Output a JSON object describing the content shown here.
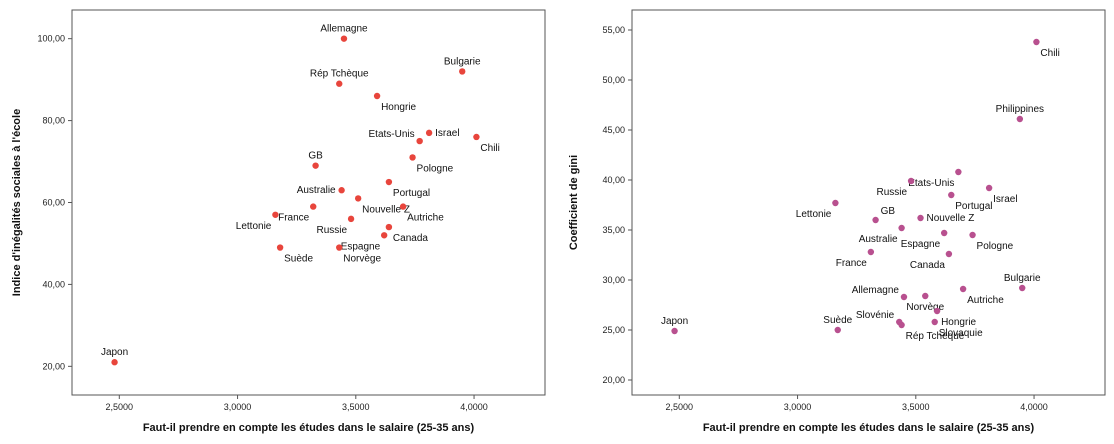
{
  "chart_data": [
    {
      "type": "scatter",
      "title": "",
      "xlabel": "Faut-il prendre en compte les études dans le salaire (25-35 ans)",
      "ylabel": "Indice d'inégalités sociales à l'école",
      "xlim": [
        2.3,
        4.3
      ],
      "ylim": [
        13,
        107
      ],
      "x_ticks": [
        2.5,
        3.0,
        3.5,
        4.0
      ],
      "x_tick_labels": [
        "2,5000",
        "3,0000",
        "3,5000",
        "4,0000"
      ],
      "y_ticks": [
        20,
        40,
        60,
        80,
        100
      ],
      "y_tick_labels": [
        "20,00",
        "40,00",
        "60,00",
        "80,00",
        "100,00"
      ],
      "grid": false,
      "marker_color": "#e8453c",
      "points": [
        {
          "label": "Allemagne",
          "x": 3.45,
          "y": 100,
          "pos": "top"
        },
        {
          "label": "Bulgarie",
          "x": 3.95,
          "y": 92,
          "pos": "top"
        },
        {
          "label": "Rép Tchèque",
          "x": 3.43,
          "y": 89,
          "pos": "top"
        },
        {
          "label": "Hongrie",
          "x": 3.59,
          "y": 86,
          "pos": "belowright"
        },
        {
          "label": "Etats-Unis",
          "x": 3.77,
          "y": 75,
          "pos": "topleft"
        },
        {
          "label": "Israel",
          "x": 3.81,
          "y": 77,
          "pos": "right"
        },
        {
          "label": "Chili",
          "x": 4.01,
          "y": 76,
          "pos": "belowright"
        },
        {
          "label": "Pologne",
          "x": 3.74,
          "y": 71,
          "pos": "belowright"
        },
        {
          "label": "GB",
          "x": 3.33,
          "y": 69,
          "pos": "top"
        },
        {
          "label": "Portugal",
          "x": 3.64,
          "y": 65,
          "pos": "belowright"
        },
        {
          "label": "Australie",
          "x": 3.44,
          "y": 63,
          "pos": "left"
        },
        {
          "label": "Nouvelle Z",
          "x": 3.51,
          "y": 61,
          "pos": "belowright"
        },
        {
          "label": "Autriche",
          "x": 3.7,
          "y": 59,
          "pos": "belowright"
        },
        {
          "label": "France",
          "x": 3.32,
          "y": 59,
          "pos": "belowleft"
        },
        {
          "label": "Lettonie",
          "x": 3.16,
          "y": 57,
          "pos": "belowleft"
        },
        {
          "label": "Russie",
          "x": 3.48,
          "y": 56,
          "pos": "belowleft"
        },
        {
          "label": "Canada",
          "x": 3.64,
          "y": 54,
          "pos": "belowright"
        },
        {
          "label": "Espagne",
          "x": 3.62,
          "y": 52,
          "pos": "belowleft"
        },
        {
          "label": "Norvège",
          "x": 3.43,
          "y": 49,
          "pos": "belowright"
        },
        {
          "label": "Suède",
          "x": 3.18,
          "y": 49,
          "pos": "belowright"
        },
        {
          "label": "Japon",
          "x": 2.48,
          "y": 21,
          "pos": "top"
        }
      ]
    },
    {
      "type": "scatter",
      "title": "",
      "xlabel": "Faut-il prendre en compte les études dans le salaire (25-35 ans)",
      "ylabel": "Coefficient de gini",
      "xlim": [
        2.3,
        4.3
      ],
      "ylim": [
        18.5,
        57
      ],
      "x_ticks": [
        2.5,
        3.0,
        3.5,
        4.0
      ],
      "x_tick_labels": [
        "2,5000",
        "3,0000",
        "3,5000",
        "4,0000"
      ],
      "y_ticks": [
        20,
        25,
        30,
        35,
        40,
        45,
        50,
        55
      ],
      "y_tick_labels": [
        "20,00",
        "25,00",
        "30,00",
        "35,00",
        "40,00",
        "45,00",
        "50,00",
        "55,00"
      ],
      "grid": false,
      "marker_color": "#b8508f",
      "points": [
        {
          "label": "Chili",
          "x": 4.01,
          "y": 53.8,
          "pos": "belowright"
        },
        {
          "label": "Philippines",
          "x": 3.94,
          "y": 46.1,
          "pos": "top"
        },
        {
          "label": "Etats-Unis",
          "x": 3.68,
          "y": 40.8,
          "pos": "belowleft"
        },
        {
          "label": "Russie",
          "x": 3.48,
          "y": 39.9,
          "pos": "belowleft"
        },
        {
          "label": "Israel",
          "x": 3.81,
          "y": 39.2,
          "pos": "belowright"
        },
        {
          "label": "Portugal",
          "x": 3.65,
          "y": 38.5,
          "pos": "belowright"
        },
        {
          "label": "Lettonie",
          "x": 3.16,
          "y": 37.7,
          "pos": "belowleft"
        },
        {
          "label": "GB",
          "x": 3.33,
          "y": 36.0,
          "pos": "topright"
        },
        {
          "label": "Nouvelle Z",
          "x": 3.52,
          "y": 36.2,
          "pos": "right"
        },
        {
          "label": "Australie",
          "x": 3.44,
          "y": 35.2,
          "pos": "belowleft"
        },
        {
          "label": "Espagne",
          "x": 3.62,
          "y": 34.7,
          "pos": "belowleft"
        },
        {
          "label": "Pologne",
          "x": 3.74,
          "y": 34.5,
          "pos": "belowright"
        },
        {
          "label": "France",
          "x": 3.31,
          "y": 32.8,
          "pos": "belowleft"
        },
        {
          "label": "Canada",
          "x": 3.64,
          "y": 32.6,
          "pos": "belowleft"
        },
        {
          "label": "Bulgarie",
          "x": 3.95,
          "y": 29.2,
          "pos": "top"
        },
        {
          "label": "Autriche",
          "x": 3.7,
          "y": 29.1,
          "pos": "belowright"
        },
        {
          "label": "Allemagne",
          "x": 3.45,
          "y": 28.3,
          "pos": "topleft"
        },
        {
          "label": "Norvège",
          "x": 3.54,
          "y": 28.4,
          "pos": "below"
        },
        {
          "label": "Slovénie",
          "x": 3.43,
          "y": 25.8,
          "pos": "topleft"
        },
        {
          "label": "Hongrie",
          "x": 3.59,
          "y": 26.9,
          "pos": "belowright"
        },
        {
          "label": "Slovaquie",
          "x": 3.58,
          "y": 25.8,
          "pos": "belowright"
        },
        {
          "label": "Rép Tchèque",
          "x": 3.44,
          "y": 25.5,
          "pos": "belowright"
        },
        {
          "label": "Suède",
          "x": 3.17,
          "y": 25.0,
          "pos": "top"
        },
        {
          "label": "Japon",
          "x": 2.48,
          "y": 24.9,
          "pos": "top"
        }
      ]
    }
  ]
}
